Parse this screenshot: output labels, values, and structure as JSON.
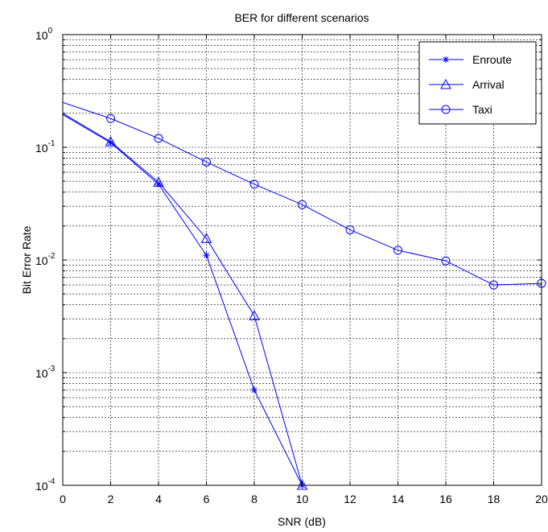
{
  "chart_data": {
    "type": "line",
    "title": "BER for different scenarios",
    "xlabel": "SNR (dB)",
    "ylabel": "Bit Error Rate",
    "xlim": [
      0,
      20
    ],
    "ylim": [
      0.0001,
      1
    ],
    "yscale": "log",
    "grid": true,
    "legend_position": "top-right",
    "xticks": [
      0,
      2,
      4,
      6,
      8,
      10,
      12,
      14,
      16,
      18,
      20
    ],
    "yticks": [
      {
        "value": 0.0001,
        "base": "10",
        "exp": "-4"
      },
      {
        "value": 0.001,
        "base": "10",
        "exp": "-3"
      },
      {
        "value": 0.01,
        "base": "10",
        "exp": "-2"
      },
      {
        "value": 0.1,
        "base": "10",
        "exp": "-1"
      },
      {
        "value": 1,
        "base": "10",
        "exp": "0"
      }
    ],
    "series": [
      {
        "name": "Enroute",
        "marker": "star",
        "color": "#0000ff",
        "x": [
          0,
          2,
          4,
          6,
          8,
          10
        ],
        "y": [
          0.195,
          0.11,
          0.047,
          0.011,
          0.0007,
          0.0001
        ]
      },
      {
        "name": "Arrival",
        "marker": "triangle",
        "color": "#0000ff",
        "x": [
          0,
          2,
          4,
          6,
          8,
          10
        ],
        "y": [
          0.2,
          0.112,
          0.049,
          0.0155,
          0.0032,
          0.0001
        ]
      },
      {
        "name": "Taxi",
        "marker": "circle",
        "color": "#0000ff",
        "x": [
          0,
          2,
          4,
          6,
          8,
          10,
          12,
          14,
          16,
          18,
          20
        ],
        "y": [
          0.25,
          0.18,
          0.12,
          0.074,
          0.047,
          0.031,
          0.0185,
          0.0122,
          0.0098,
          0.006,
          0.0062
        ]
      }
    ]
  }
}
